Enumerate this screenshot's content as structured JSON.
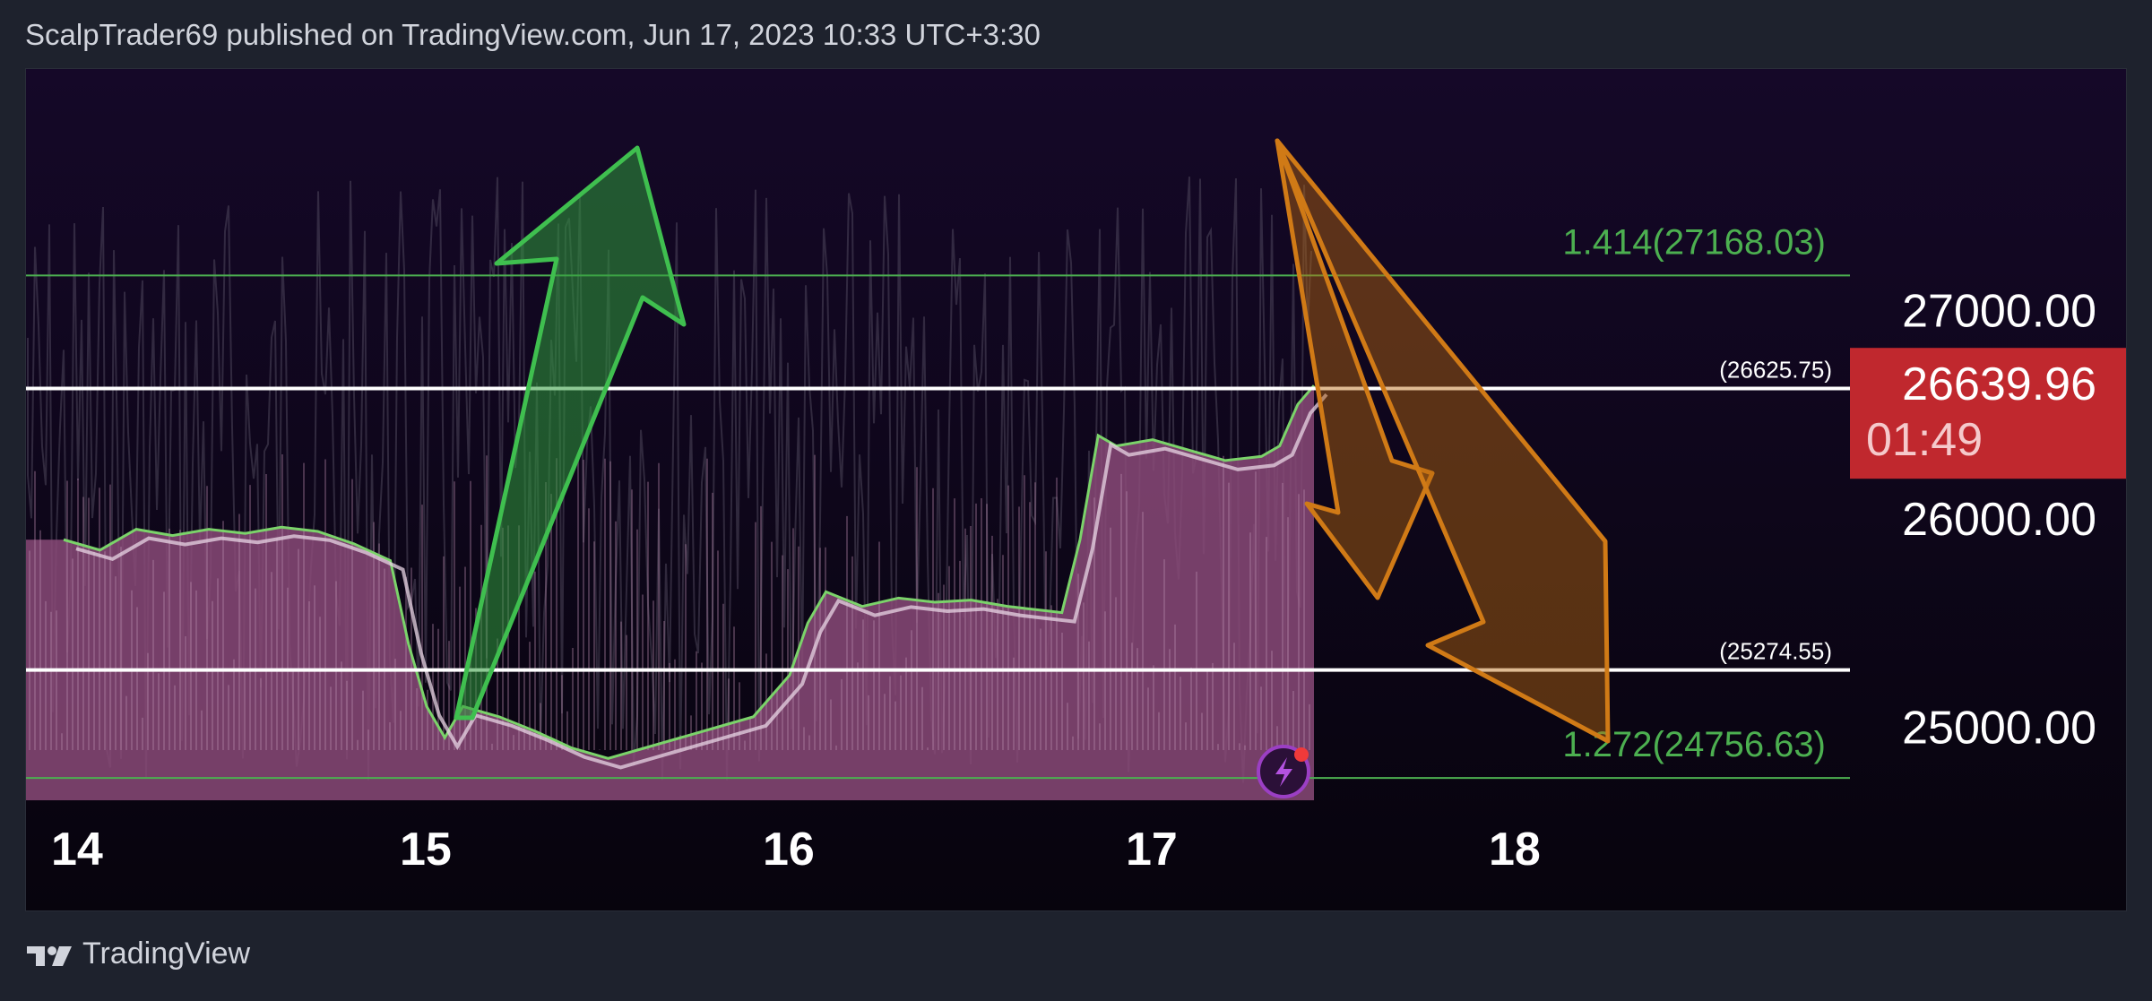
{
  "header": {
    "text": "ScalpTrader69 published on TradingView.com, Jun 17, 2023 10:33 UTC+3:30"
  },
  "footer": {
    "brand": "TradingView"
  },
  "colors": {
    "background": "#0c0718",
    "page": "#1e222d",
    "area_fill": "#8a4a78",
    "up_arrow": "#2f9a3c",
    "down_arrow": "#b8680f",
    "fib_line": "#4caf50",
    "price_badge": "#c0282e",
    "level_line": "#ffffff"
  },
  "icons": {
    "lightning": "lightning-icon"
  },
  "chart_data": {
    "type": "line",
    "symbol_context": "price chart with levels and projection arrows",
    "x_ticks": [
      "14",
      "15",
      "16",
      "17",
      "18"
    ],
    "y_ticks": [
      "27000.00",
      "26000.00",
      "25000.00"
    ],
    "ylim": [
      24400,
      27600
    ],
    "current_price": "26639.96",
    "countdown": "01:49",
    "levels": [
      {
        "label": "(26625.75)",
        "value": 26625.75,
        "style": "white"
      },
      {
        "label": "(25274.55)",
        "value": 25274.55,
        "style": "white"
      }
    ],
    "fib_levels": [
      {
        "label": "1.414(27168.03)",
        "value": 27168.03
      },
      {
        "label": "1.272(24756.63)",
        "value": 24756.63
      }
    ],
    "series": [
      {
        "x": [
          14.0,
          14.1,
          14.2,
          14.3,
          14.4,
          14.5,
          14.6,
          14.7,
          14.8,
          14.9,
          14.95,
          15.0,
          15.05,
          15.1,
          15.2,
          15.3,
          15.4,
          15.5,
          15.6,
          15.7,
          15.8,
          15.9,
          16.0,
          16.05,
          16.1,
          16.2,
          16.3,
          16.4,
          16.5,
          16.6,
          16.7,
          16.75,
          16.8,
          16.85,
          16.9,
          17.0,
          17.1,
          17.2,
          17.3,
          17.35,
          17.4,
          17.45
        ],
        "values": [
          25900,
          25850,
          25950,
          25920,
          25950,
          25930,
          25960,
          25940,
          25880,
          25800,
          25400,
          25100,
          24950,
          25100,
          25050,
          24980,
          24900,
          24850,
          24900,
          24950,
          25000,
          25050,
          25250,
          25500,
          25650,
          25580,
          25620,
          25600,
          25610,
          25580,
          25560,
          25550,
          25900,
          26400,
          26350,
          26380,
          26330,
          26280,
          26300,
          26350,
          26550,
          26640
        ]
      }
    ]
  }
}
